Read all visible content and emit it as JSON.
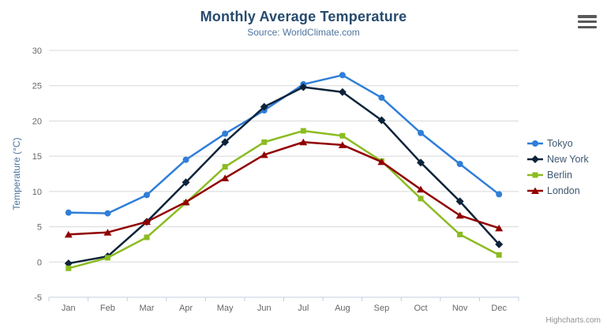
{
  "chart_data": {
    "type": "line",
    "title": "Monthly Average Temperature",
    "subtitle": "Source: WorldClimate.com",
    "categories": [
      "Jan",
      "Feb",
      "Mar",
      "Apr",
      "May",
      "Jun",
      "Jul",
      "Aug",
      "Sep",
      "Oct",
      "Nov",
      "Dec"
    ],
    "xlabel": "",
    "ylabel": "Temperature (°C)",
    "ylim": [
      -5,
      30
    ],
    "ytick_step": 5,
    "grid": true,
    "legend_position": "right",
    "series": [
      {
        "name": "Tokyo",
        "color": "#2f7ed8",
        "marker": "circle",
        "values": [
          7.0,
          6.9,
          9.5,
          14.5,
          18.2,
          21.5,
          25.2,
          26.5,
          23.3,
          18.3,
          13.9,
          9.6
        ]
      },
      {
        "name": "New York",
        "color": "#0d233a",
        "marker": "diamond",
        "values": [
          -0.2,
          0.8,
          5.7,
          11.3,
          17.0,
          22.0,
          24.8,
          24.1,
          20.1,
          14.1,
          8.6,
          2.5
        ]
      },
      {
        "name": "Berlin",
        "color": "#8bbc21",
        "marker": "square",
        "values": [
          -0.9,
          0.6,
          3.5,
          8.4,
          13.5,
          17.0,
          18.6,
          17.9,
          14.3,
          9.0,
          3.9,
          1.0
        ]
      },
      {
        "name": "London",
        "color": "#910000",
        "marker": "triangle",
        "values": [
          3.9,
          4.2,
          5.7,
          8.5,
          11.9,
          15.2,
          17.0,
          16.6,
          14.2,
          10.3,
          6.6,
          4.8
        ]
      }
    ]
  },
  "toolbar": {
    "export_icon": "hamburger-menu-icon"
  },
  "credits": {
    "label": "Highcharts.com"
  },
  "colors": {
    "title": "#274b6d",
    "subtitle": "#4d759e",
    "axis_title": "#4d759e",
    "tick_label": "#666666",
    "grid_line": "#d8d8d8",
    "axis_line": "#c0d0e0",
    "legend_text": "#3e576f",
    "credits_text": "#909090"
  }
}
